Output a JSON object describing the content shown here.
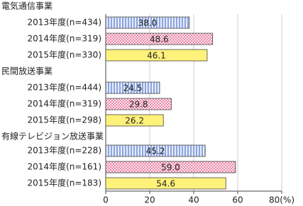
{
  "chart_data": {
    "type": "bar",
    "orientation": "horizontal",
    "groups": [
      {
        "name": "電気通信事業",
        "categories": [
          "2013年度(n=434)",
          "2014年度(n=319)",
          "2015年度(n=330)"
        ],
        "values": [
          38,
          48.6,
          46.1
        ],
        "value_labels": [
          "38.0",
          "48.6",
          "46.1"
        ]
      },
      {
        "name": "民間放送事業",
        "categories": [
          "2013年度(n=444)",
          "2014年度(n=319)",
          "2015年度(n=298)"
        ],
        "values": [
          24.5,
          29.8,
          26.2
        ],
        "value_labels": [
          "24.5",
          "29.8",
          "26.2"
        ]
      },
      {
        "name": "有線テレビジョン放送事業",
        "categories": [
          "2013年度(n=228)",
          "2014年度(n=161)",
          "2015年度(n=183)"
        ],
        "values": [
          45.2,
          59,
          54.6
        ],
        "value_labels": [
          "45.2",
          "59.0",
          "54.6"
        ]
      }
    ],
    "colors": [
      "#5b7fd0",
      "#e8739b",
      "#fff27a"
    ],
    "xlim": [
      0,
      80
    ],
    "xticks": [
      0,
      20,
      40,
      60,
      {
        "value": 80,
        "label": "80(%)"
      }
    ],
    "grid": true
  }
}
